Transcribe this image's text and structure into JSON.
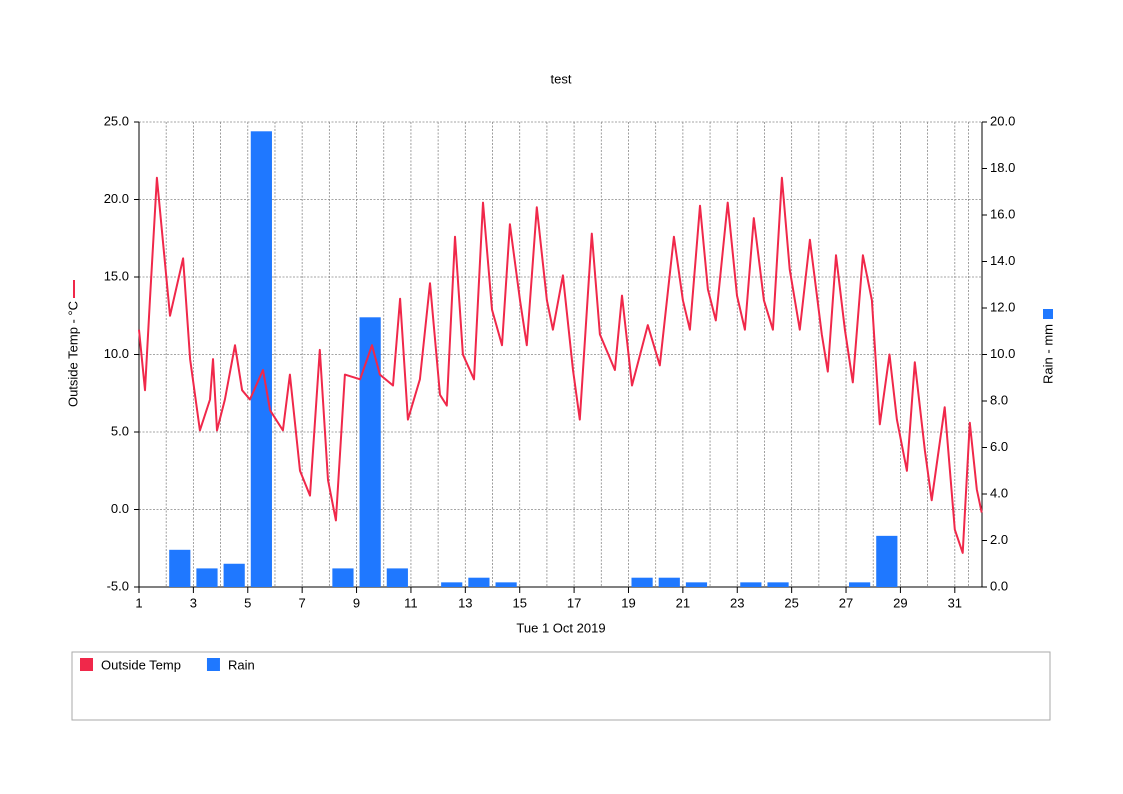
{
  "chart_data": {
    "type": "combo",
    "title": "test",
    "x_label": "Tue 1 Oct 2019",
    "y_label": "Outside Temp - °C",
    "y2_label": "Rain - mm",
    "xlim": [
      1,
      32
    ],
    "xticks": [
      1,
      3,
      5,
      7,
      9,
      11,
      13,
      15,
      17,
      19,
      21,
      23,
      25,
      27,
      29,
      31
    ],
    "ylim": [
      -5,
      25
    ],
    "yticks": [
      {
        "value": -5,
        "label": "-5.0"
      },
      {
        "value": 0,
        "label": "0.0"
      },
      {
        "value": 5,
        "label": "5.0"
      },
      {
        "value": 10,
        "label": "10.0"
      },
      {
        "value": 15,
        "label": "15.0"
      },
      {
        "value": 20,
        "label": "20.0"
      },
      {
        "value": 25,
        "label": "25.0"
      }
    ],
    "y2lim": [
      0,
      20
    ],
    "y2ticks": [
      {
        "value": 0,
        "label": "0.0"
      },
      {
        "value": 2,
        "label": "2.0"
      },
      {
        "value": 4,
        "label": "4.0"
      },
      {
        "value": 6,
        "label": "6.0"
      },
      {
        "value": 8,
        "label": "8.0"
      },
      {
        "value": 10,
        "label": "10.0"
      },
      {
        "value": 12,
        "label": "12.0"
      },
      {
        "value": 14,
        "label": "14.0"
      },
      {
        "value": 16,
        "label": "16.0"
      },
      {
        "value": 18,
        "label": "18.0"
      },
      {
        "value": 20,
        "label": "20.0"
      }
    ],
    "grid": true,
    "legend": "bottom",
    "series": [
      {
        "name": "Outside Temp",
        "type": "line",
        "color": "#f0284a",
        "x": [
          1.0,
          1.22,
          1.4,
          1.66,
          2.14,
          2.62,
          2.88,
          3.24,
          3.61,
          3.72,
          3.87,
          4.16,
          4.53,
          4.79,
          5.08,
          5.56,
          5.82,
          6.29,
          6.55,
          6.92,
          7.29,
          7.65,
          7.95,
          8.24,
          8.57,
          9.13,
          9.57,
          9.86,
          10.34,
          10.6,
          10.89,
          11.33,
          11.7,
          12.07,
          12.32,
          12.62,
          12.91,
          13.32,
          13.65,
          13.98,
          14.35,
          14.64,
          15.01,
          15.26,
          15.63,
          16.0,
          16.22,
          16.59,
          16.96,
          17.21,
          17.65,
          17.95,
          18.5,
          18.76,
          19.13,
          19.71,
          20.15,
          20.67,
          21.0,
          21.26,
          21.63,
          21.92,
          22.21,
          22.65,
          22.99,
          23.28,
          23.61,
          23.98,
          24.31,
          24.64,
          24.93,
          25.3,
          25.67,
          26.11,
          26.33,
          26.63,
          26.96,
          27.25,
          27.62,
          27.95,
          28.24,
          28.6,
          28.87,
          29.24,
          29.53,
          29.9,
          30.15,
          30.63,
          31.0,
          31.29,
          31.55,
          31.81,
          31.99
        ],
        "values": [
          11.6,
          7.7,
          13.5,
          21.4,
          12.5,
          16.2,
          9.7,
          5.1,
          7.1,
          9.7,
          5.1,
          7.1,
          10.6,
          7.7,
          7.1,
          9.0,
          6.4,
          5.1,
          8.7,
          2.5,
          0.9,
          10.3,
          1.9,
          -0.7,
          8.7,
          8.4,
          10.6,
          8.7,
          8.0,
          13.6,
          5.8,
          8.4,
          14.6,
          7.4,
          6.7,
          17.6,
          10.0,
          8.4,
          19.8,
          12.9,
          10.6,
          18.4,
          13.5,
          10.6,
          19.5,
          13.5,
          11.6,
          15.1,
          9.0,
          5.8,
          17.8,
          11.3,
          9.0,
          13.8,
          8.0,
          11.9,
          9.3,
          17.6,
          13.5,
          11.6,
          19.6,
          14.2,
          12.2,
          19.8,
          13.8,
          11.6,
          18.8,
          13.5,
          11.6,
          21.4,
          15.5,
          11.6,
          17.4,
          11.3,
          8.9,
          16.4,
          11.6,
          8.2,
          16.4,
          13.5,
          5.5,
          10.0,
          5.8,
          2.5,
          9.5,
          3.8,
          0.6,
          6.6,
          -1.3,
          -2.8,
          5.6,
          1.3,
          -0.2
        ]
      },
      {
        "name": "Rain",
        "type": "bar",
        "axis": "y2",
        "color": "#1f78ff",
        "x": [
          1,
          2,
          3,
          4,
          5,
          6,
          7,
          8,
          9,
          10,
          11,
          12,
          13,
          14,
          15,
          16,
          17,
          18,
          19,
          20,
          21,
          22,
          23,
          24,
          25,
          26,
          27,
          28,
          29,
          30,
          31
        ],
        "values": [
          0,
          1.6,
          0.8,
          1.0,
          19.6,
          0,
          0,
          0.8,
          11.6,
          0.8,
          0,
          0.2,
          0.4,
          0.2,
          0,
          0,
          0,
          0,
          0.4,
          0.4,
          0.2,
          0,
          0.2,
          0.2,
          0,
          0,
          0.2,
          2.2,
          0,
          0,
          0
        ]
      }
    ]
  }
}
